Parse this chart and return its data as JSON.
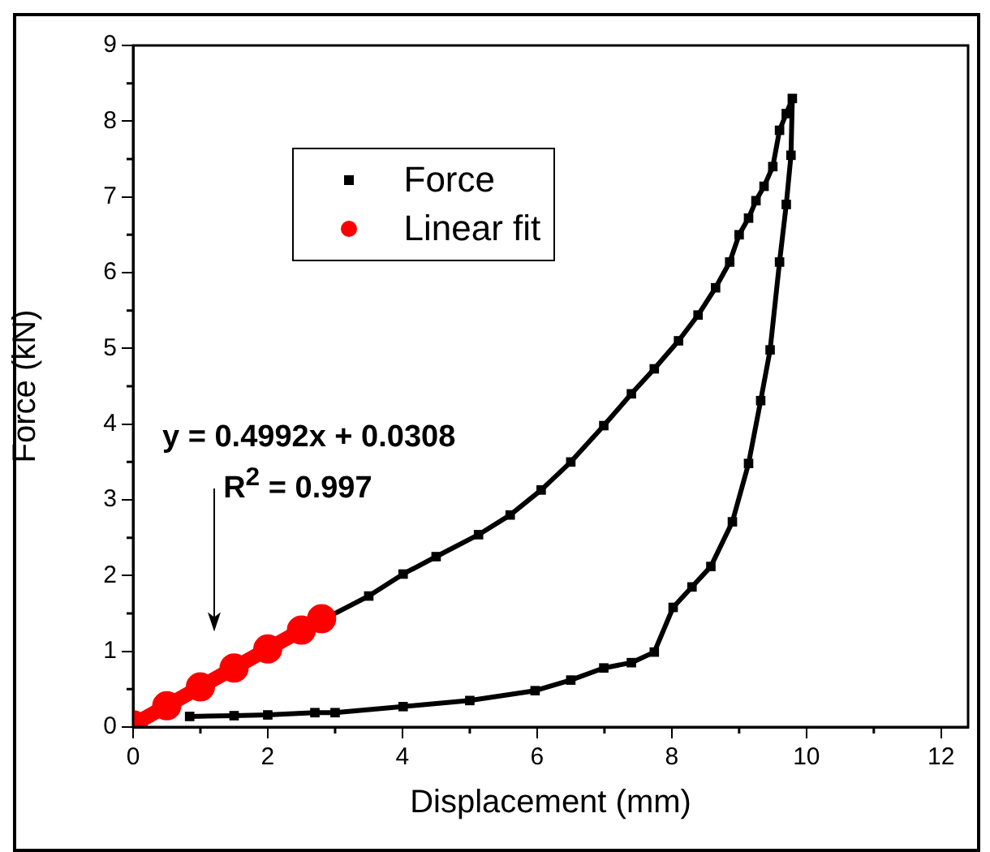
{
  "chart_data": {
    "type": "line",
    "xlabel": "Displacement (mm)",
    "ylabel": "Force (kN)",
    "xlim": [
      0,
      12.4
    ],
    "xticks": [
      0,
      2,
      4,
      6,
      8,
      10,
      12
    ],
    "ylim": [
      0,
      9
    ],
    "yticks": [
      0,
      1,
      2,
      3,
      4,
      5,
      6,
      7,
      8,
      9
    ],
    "grid": false,
    "legend": "top left",
    "series": [
      {
        "name": "Force",
        "color": "#000000",
        "marker": "square",
        "x": [
          2.89,
          3.5,
          4.01,
          4.5,
          5.13,
          5.6,
          6.06,
          6.5,
          6.99,
          7.4,
          7.74,
          8.1,
          8.39,
          8.65,
          8.86,
          9.0,
          9.14,
          9.25,
          9.37,
          9.5,
          9.6,
          9.7,
          9.79,
          9.77,
          9.7,
          9.6,
          9.46,
          9.32,
          9.14,
          8.9,
          8.58,
          8.3,
          8.02,
          7.74,
          7.4,
          6.99,
          6.5,
          5.97,
          5.0,
          4.01,
          3.0,
          2.7,
          2.0,
          1.5,
          0.84
        ],
        "values": [
          1.45,
          1.73,
          2.02,
          2.25,
          2.54,
          2.8,
          3.13,
          3.5,
          3.98,
          4.4,
          4.73,
          5.1,
          5.44,
          5.8,
          6.14,
          6.5,
          6.72,
          6.95,
          7.14,
          7.4,
          7.88,
          8.1,
          8.3,
          7.55,
          6.9,
          6.14,
          4.98,
          4.31,
          3.48,
          2.71,
          2.12,
          1.85,
          1.58,
          0.99,
          0.85,
          0.78,
          0.62,
          0.48,
          0.35,
          0.27,
          0.19,
          0.19,
          0.16,
          0.15,
          0.14
        ]
      },
      {
        "name": "Linear fit",
        "color": "#ff0000",
        "marker": "circle",
        "x": [
          0,
          0.5,
          1,
          1.5,
          2,
          2.5,
          2.8
        ],
        "values": [
          0.03,
          0.28,
          0.53,
          0.78,
          1.03,
          1.28,
          1.43
        ]
      }
    ],
    "annotations": [
      "y = 0.4992x + 0.0308",
      "R$^{2}$ = 0.997"
    ]
  }
}
